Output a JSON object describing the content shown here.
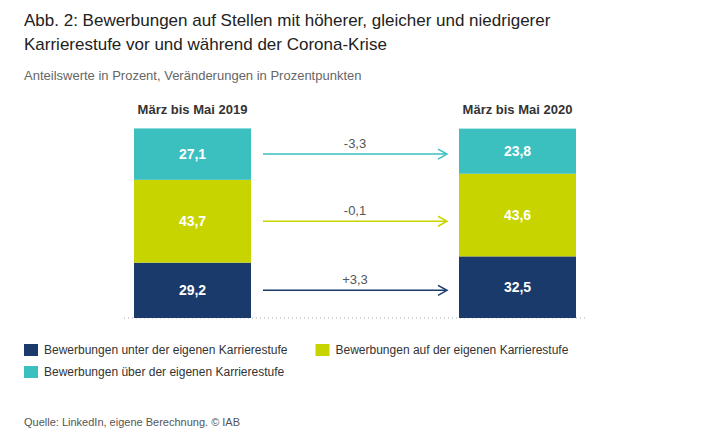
{
  "chart_data": {
    "type": "bar",
    "stacked": true,
    "title": [
      "Abb. 2: Bewerbungen auf Stellen mit höherer, gleicher und niedrigerer",
      "Karrierestufe vor und während der Corona-Krise"
    ],
    "subtitle": "Anteilswerte in Prozent, Veränderungen in Prozentpunkten",
    "source": "Quelle: LinkedIn, eigene Berechnung. © IAB",
    "categories": [
      "März bis Mai 2019",
      "März bis Mai 2020"
    ],
    "series": [
      {
        "name": "Bewerbungen unter der eigenen Karrierestufe",
        "color": "#1a3a6b",
        "values": [
          29.2,
          32.5
        ],
        "value_labels": [
          "29,2",
          "32,5"
        ]
      },
      {
        "name": "Bewerbungen auf der eigenen Karrierestufe",
        "color": "#c8d400",
        "values": [
          43.7,
          43.6
        ],
        "value_labels": [
          "43,7",
          "43,6"
        ]
      },
      {
        "name": "Bewerbungen über der eigenen Karrierestufe",
        "color": "#3bbfbf",
        "values": [
          27.1,
          23.8
        ],
        "value_labels": [
          "27,1",
          "23,8"
        ]
      }
    ],
    "annotations": [
      {
        "text": "-3,3",
        "color": "#3bbfbf"
      },
      {
        "text": "-0,1",
        "color": "#c8d400"
      },
      {
        "text": "+3,3",
        "color": "#1a3a6b"
      }
    ],
    "ylim": [
      0,
      115
    ],
    "tick_labels": false,
    "grid": false,
    "data_labels": true,
    "legend": "bottom"
  }
}
